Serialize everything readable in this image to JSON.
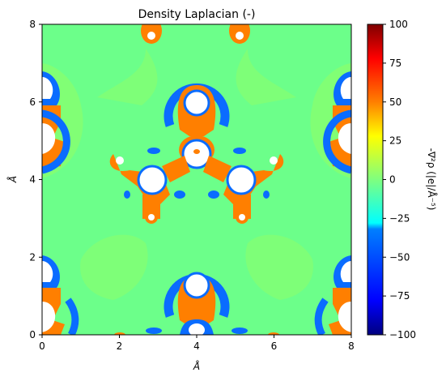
{
  "chart_data": {
    "type": "heatmap",
    "title": "Density Laplacian (-)",
    "xlabel": "Å",
    "ylabel": "Å",
    "xlim": [
      0,
      8
    ],
    "ylim": [
      0,
      8
    ],
    "xticks": [
      "0",
      "2",
      "4",
      "6",
      "8"
    ],
    "yticks": [
      "0",
      "2",
      "4",
      "6",
      "8"
    ],
    "colorbar": {
      "label": "-∇²ρ (|e|/Å⁻⁵)",
      "range": [
        -100,
        100
      ],
      "ticks": [
        "100",
        "75",
        "50",
        "25",
        "0",
        "−25",
        "−50",
        "−75",
        "−100"
      ],
      "colormap": "jet",
      "colors": [
        "#00007f",
        "#0000ff",
        "#007fff",
        "#00ffff",
        "#7fff7f",
        "#ffff00",
        "#ff7f00",
        "#ff0000",
        "#7f0000"
      ]
    },
    "background_level": 0,
    "atoms": [
      {
        "x": 4.0,
        "y": 4.75,
        "kind": "center-top"
      },
      {
        "x": 2.8,
        "y": 4.15,
        "kind": "center-left"
      },
      {
        "x": 5.2,
        "y": 4.15,
        "kind": "center-right"
      },
      {
        "x": 4.0,
        "y": 6.05,
        "kind": "upper"
      },
      {
        "x": 4.0,
        "y": 1.25,
        "kind": "lower"
      },
      {
        "x": 4.0,
        "y": 0.1,
        "kind": "bottom-edge"
      },
      {
        "x": 0.0,
        "y": 5.1,
        "kind": "left-edge"
      },
      {
        "x": 0.0,
        "y": 6.0,
        "kind": "left-edge-top"
      },
      {
        "x": 0.0,
        "y": 0.4,
        "kind": "left-edge"
      },
      {
        "x": 0.0,
        "y": 1.6,
        "kind": "left-edge-top"
      },
      {
        "x": 8.0,
        "y": 5.1,
        "kind": "right-edge"
      },
      {
        "x": 8.0,
        "y": 6.0,
        "kind": "right-edge-top"
      },
      {
        "x": 8.0,
        "y": 0.4,
        "kind": "right-edge"
      },
      {
        "x": 8.0,
        "y": 1.6,
        "kind": "right-edge-top"
      }
    ]
  }
}
